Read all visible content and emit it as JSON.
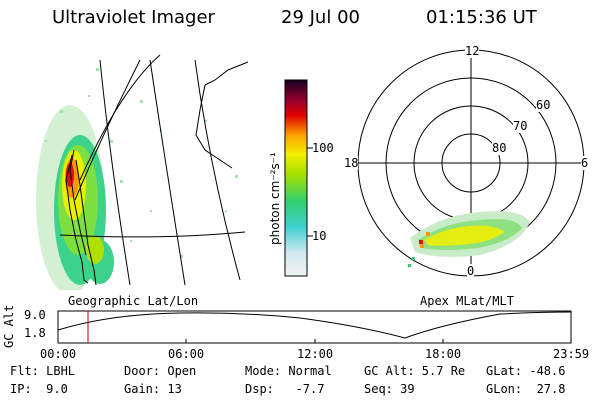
{
  "header": {
    "instrument": "Ultraviolet Imager",
    "date": "29 Jul 00",
    "time": "01:15:36 UT"
  },
  "left_map": {
    "caption": "Geographic Lat/Lon"
  },
  "right_map": {
    "caption": "Apex MLat/MLT",
    "mlt_labels": [
      "12",
      "18",
      "6",
      "0"
    ],
    "lat_labels": [
      "60",
      "70",
      "80"
    ]
  },
  "colorbar": {
    "label": "photon cm⁻²s⁻¹",
    "ticks": [
      "100",
      "10"
    ],
    "scale": "log"
  },
  "altitude_plot": {
    "ylabel": "GC Alt",
    "yticks": [
      "9.0",
      "1.8"
    ],
    "xticks": [
      "00:00",
      "06:00",
      "12:00",
      "18:00",
      "23:59"
    ],
    "marker_color": "#cc0000"
  },
  "info": {
    "row1": {
      "flt": "Flt: LBHL",
      "door": "Door: Open",
      "mode": "Mode: Normal",
      "gcalt": "GC Alt: 5.7 Re",
      "glat": "GLat: -48.6"
    },
    "row2": {
      "ip": "IP:  9.0",
      "gain": "Gain: 13",
      "dsp": "Dsp:   -7.7",
      "seq": "Seq: 39",
      "glon": "GLon:  27.8"
    }
  }
}
